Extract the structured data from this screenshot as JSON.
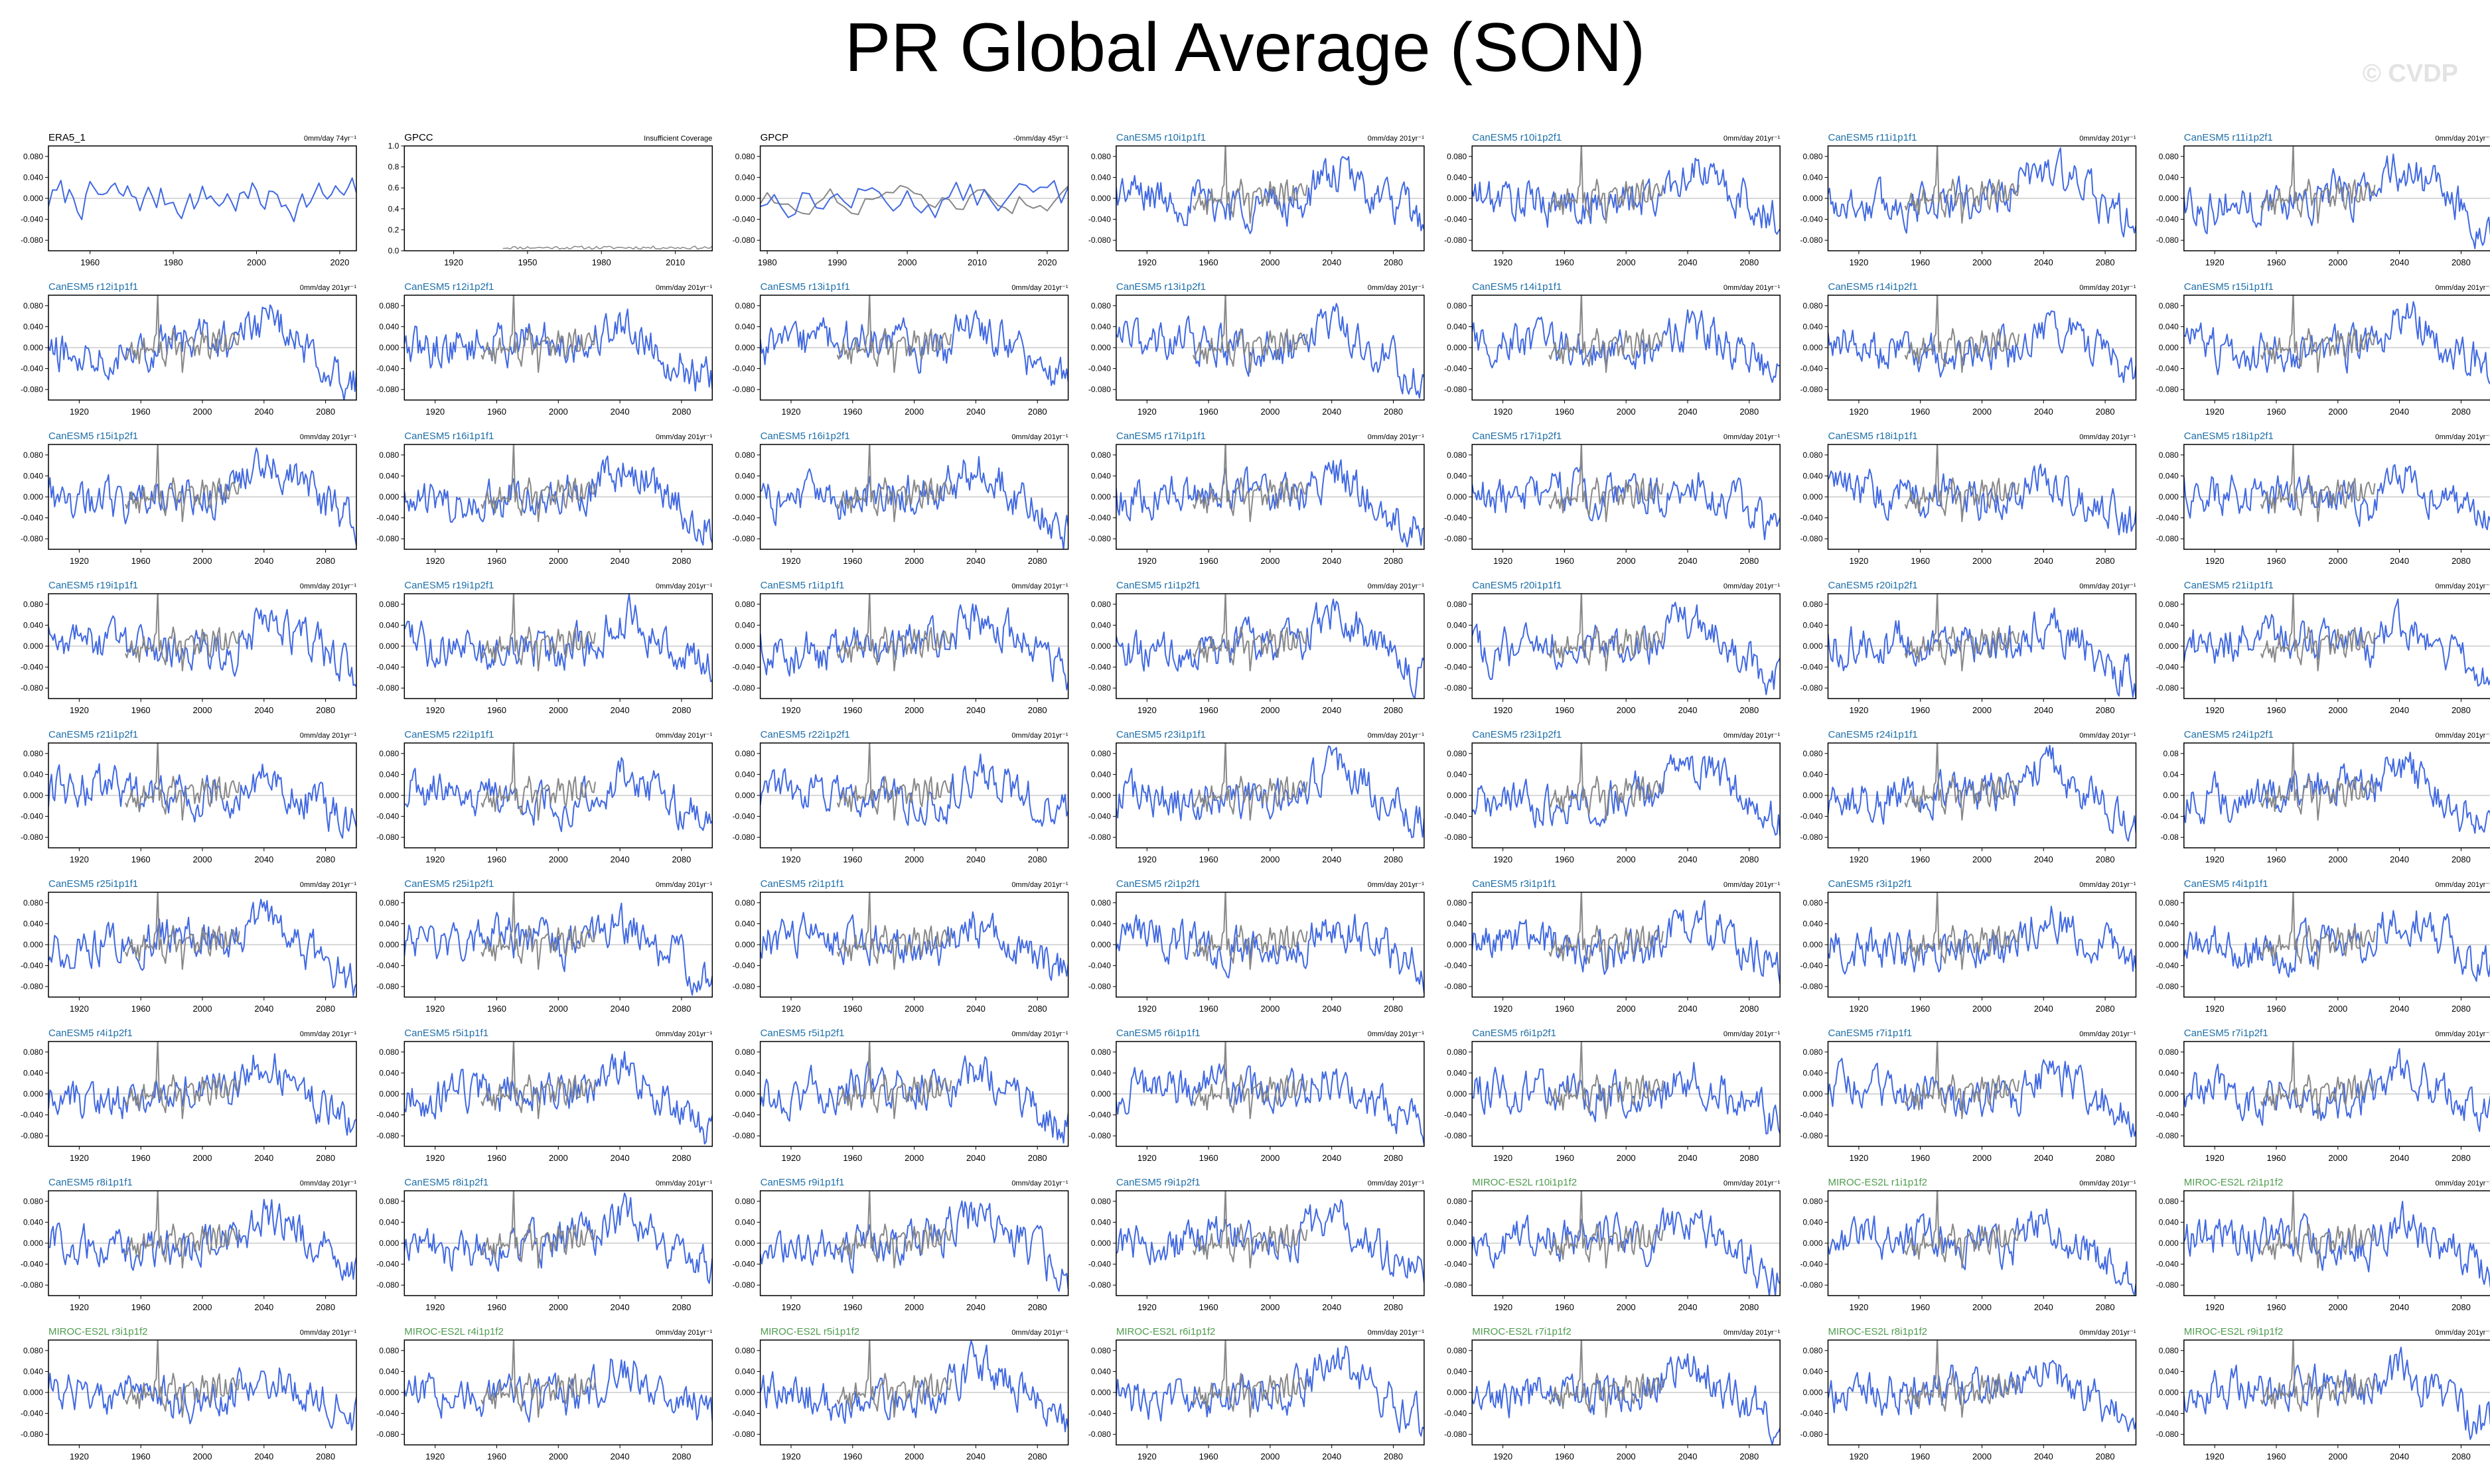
{
  "title": "PR Global Average (SON)",
  "watermark": "© CVDP",
  "colors": {
    "model": "#4169e1",
    "obs": "#888888",
    "axis": "#000000",
    "zero": "#cccccc",
    "canesm_label": "#1f6fa8",
    "miroc_label": "#4f9c4f",
    "obs_label": "#000000"
  },
  "chart_data": [
    {
      "type": "line",
      "title": "ERA5_1",
      "title_color": "obs_label",
      "trend": "0mm/day 74yr⁻¹",
      "xrange": [
        1950,
        2024
      ],
      "xticks": [
        "1960",
        "1980",
        "2000",
        "2020"
      ],
      "xtick_values": [
        1960,
        1980,
        2000,
        2020
      ],
      "yrange": [
        -0.1,
        0.1
      ],
      "yticks": [
        "0.080",
        "0.040",
        "0.000",
        "-0.040",
        "-0.080"
      ],
      "ytick_values": [
        0.08,
        0.04,
        0,
        -0.04,
        -0.08
      ],
      "series": [
        {
          "role": "obs",
          "x_start": 1950,
          "x_step": 1,
          "seed": 7,
          "amp": 0.03,
          "trend": 0
        }
      ]
    },
    {
      "type": "line",
      "title": "GPCC",
      "title_color": "obs_label",
      "trend": "Insufficient Coverage",
      "xrange": [
        1900,
        2025
      ],
      "xticks": [
        "1920",
        "1950",
        "1980",
        "2010"
      ],
      "xtick_values": [
        1920,
        1950,
        1980,
        2010
      ],
      "yrange": [
        0,
        1
      ],
      "yticks": [
        "1.0",
        "0.8",
        "0.6",
        "0.4",
        "0.2",
        "0.0"
      ],
      "ytick_values": [
        1,
        0.8,
        0.6,
        0.4,
        0.2,
        0
      ],
      "series": [
        {
          "role": "gpcc",
          "x_start": 1940,
          "x_step": 1,
          "seed": 11,
          "amp": 0.02,
          "trend": 0
        }
      ]
    },
    {
      "type": "line",
      "title": "GPCP",
      "title_color": "obs_label",
      "trend": "-0mm/day 45yr⁻¹",
      "xrange": [
        1979,
        2023
      ],
      "xticks": [
        "1980",
        "1990",
        "2000",
        "2010",
        "2020"
      ],
      "xtick_values": [
        1980,
        1990,
        2000,
        2010,
        2020
      ],
      "yrange": [
        -0.1,
        0.1
      ],
      "yticks": [
        "0.080",
        "0.040",
        "0.000",
        "-0.040",
        "-0.080"
      ],
      "ytick_values": [
        0.08,
        0.04,
        0,
        -0.04,
        -0.08
      ],
      "series": [
        {
          "role": "obs",
          "x_start": 1979,
          "x_step": 1,
          "seed": 13,
          "amp": 0.03,
          "trend": 0
        }
      ]
    }
  ],
  "model_panel_defaults": {
    "trend": "0mm/day 201yr⁻¹",
    "xrange": [
      1900,
      2100
    ],
    "xticks": [
      "1920",
      "1960",
      "2000",
      "2040",
      "2080"
    ],
    "xtick_values": [
      1920,
      1960,
      2000,
      2040,
      2080
    ],
    "yrange": [
      -0.1,
      0.1
    ],
    "yticks": [
      "0.080",
      "0.040",
      "0.000",
      "-0.040",
      "-0.080"
    ],
    "ytick_values": [
      0.08,
      0.04,
      0,
      -0.04,
      -0.08
    ],
    "obs_overlay": {
      "x_start": 1950,
      "x_end": 2024
    }
  },
  "model_panels": [
    {
      "title": "CanESM5 r10i1p1f1",
      "group": "canesm"
    },
    {
      "title": "CanESM5 r10i1p2f1",
      "group": "canesm"
    },
    {
      "title": "CanESM5 r11i1p1f1",
      "group": "canesm"
    },
    {
      "title": "CanESM5 r11i1p2f1",
      "group": "canesm"
    },
    {
      "title": "CanESM5 r12i1p1f1",
      "group": "canesm"
    },
    {
      "title": "CanESM5 r12i1p2f1",
      "group": "canesm"
    },
    {
      "title": "CanESM5 r13i1p1f1",
      "group": "canesm"
    },
    {
      "title": "CanESM5 r13i1p2f1",
      "group": "canesm"
    },
    {
      "title": "CanESM5 r14i1p1f1",
      "group": "canesm"
    },
    {
      "title": "CanESM5 r14i1p2f1",
      "group": "canesm"
    },
    {
      "title": "CanESM5 r15i1p1f1",
      "group": "canesm"
    },
    {
      "title": "CanESM5 r15i1p2f1",
      "group": "canesm"
    },
    {
      "title": "CanESM5 r16i1p1f1",
      "group": "canesm"
    },
    {
      "title": "CanESM5 r16i1p2f1",
      "group": "canesm"
    },
    {
      "title": "CanESM5 r17i1p1f1",
      "group": "canesm"
    },
    {
      "title": "CanESM5 r17i1p2f1",
      "group": "canesm"
    },
    {
      "title": "CanESM5 r18i1p1f1",
      "group": "canesm"
    },
    {
      "title": "CanESM5 r18i1p2f1",
      "group": "canesm"
    },
    {
      "title": "CanESM5 r19i1p1f1",
      "group": "canesm"
    },
    {
      "title": "CanESM5 r19i1p2f1",
      "group": "canesm"
    },
    {
      "title": "CanESM5 r1i1p1f1",
      "group": "canesm"
    },
    {
      "title": "CanESM5 r1i1p2f1",
      "group": "canesm"
    },
    {
      "title": "CanESM5 r20i1p1f1",
      "group": "canesm"
    },
    {
      "title": "CanESM5 r20i1p2f1",
      "group": "canesm"
    },
    {
      "title": "CanESM5 r21i1p1f1",
      "group": "canesm"
    },
    {
      "title": "CanESM5 r21i1p2f1",
      "group": "canesm"
    },
    {
      "title": "CanESM5 r22i1p1f1",
      "group": "canesm"
    },
    {
      "title": "CanESM5 r22i1p2f1",
      "group": "canesm"
    },
    {
      "title": "CanESM5 r23i1p1f1",
      "group": "canesm"
    },
    {
      "title": "CanESM5 r23i1p2f1",
      "group": "canesm"
    },
    {
      "title": "CanESM5 r24i1p1f1",
      "group": "canesm"
    },
    {
      "title": "CanESM5 r24i1p2f1",
      "group": "canesm",
      "yticks": [
        "0.08",
        "0.04",
        "0.00",
        "-0.04",
        "-0.08"
      ]
    },
    {
      "title": "CanESM5 r25i1p1f1",
      "group": "canesm"
    },
    {
      "title": "CanESM5 r25i1p2f1",
      "group": "canesm"
    },
    {
      "title": "CanESM5 r2i1p1f1",
      "group": "canesm"
    },
    {
      "title": "CanESM5 r2i1p2f1",
      "group": "canesm"
    },
    {
      "title": "CanESM5 r3i1p1f1",
      "group": "canesm"
    },
    {
      "title": "CanESM5 r3i1p2f1",
      "group": "canesm"
    },
    {
      "title": "CanESM5 r4i1p1f1",
      "group": "canesm"
    },
    {
      "title": "CanESM5 r4i1p2f1",
      "group": "canesm"
    },
    {
      "title": "CanESM5 r5i1p1f1",
      "group": "canesm"
    },
    {
      "title": "CanESM5 r5i1p2f1",
      "group": "canesm"
    },
    {
      "title": "CanESM5 r6i1p1f1",
      "group": "canesm"
    },
    {
      "title": "CanESM5 r6i1p2f1",
      "group": "canesm"
    },
    {
      "title": "CanESM5 r7i1p1f1",
      "group": "canesm"
    },
    {
      "title": "CanESM5 r7i1p2f1",
      "group": "canesm"
    },
    {
      "title": "CanESM5 r8i1p1f1",
      "group": "canesm"
    },
    {
      "title": "CanESM5 r8i1p2f1",
      "group": "canesm"
    },
    {
      "title": "CanESM5 r9i1p1f1",
      "group": "canesm"
    },
    {
      "title": "CanESM5 r9i1p2f1",
      "group": "canesm"
    },
    {
      "title": "MIROC-ES2L r10i1p1f2",
      "group": "miroc"
    },
    {
      "title": "MIROC-ES2L r1i1p1f2",
      "group": "miroc"
    },
    {
      "title": "MIROC-ES2L r2i1p1f2",
      "group": "miroc"
    },
    {
      "title": "MIROC-ES2L r3i1p1f2",
      "group": "miroc"
    },
    {
      "title": "MIROC-ES2L r4i1p1f2",
      "group": "miroc"
    },
    {
      "title": "MIROC-ES2L r5i1p1f2",
      "group": "miroc"
    },
    {
      "title": "MIROC-ES2L r6i1p1f2",
      "group": "miroc"
    },
    {
      "title": "MIROC-ES2L r7i1p1f2",
      "group": "miroc"
    },
    {
      "title": "MIROC-ES2L r8i1p1f2",
      "group": "miroc"
    },
    {
      "title": "MIROC-ES2L r9i1p1f2",
      "group": "miroc"
    }
  ]
}
